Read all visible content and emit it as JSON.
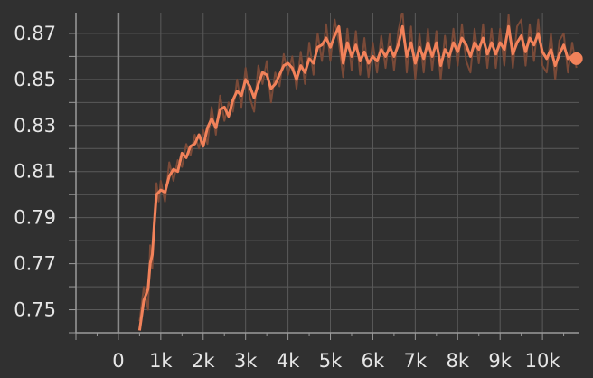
{
  "chart_data": {
    "type": "line",
    "title": "",
    "xlabel": "",
    "ylabel": "",
    "xlim": [
      -1000,
      10850
    ],
    "ylim": [
      0.74,
      0.879
    ],
    "x_ticks": [
      0,
      1000,
      2000,
      3000,
      4000,
      5000,
      6000,
      7000,
      8000,
      9000,
      10000
    ],
    "x_tick_labels": [
      "0",
      "1k",
      "2k",
      "3k",
      "4k",
      "5k",
      "6k",
      "7k",
      "8k",
      "9k",
      "10k"
    ],
    "y_ticks": [
      0.75,
      0.77,
      0.79,
      0.81,
      0.83,
      0.85,
      0.87
    ],
    "y_tick_labels": [
      "0.75",
      "0.77",
      "0.79",
      "0.81",
      "0.83",
      "0.85",
      "0.87"
    ],
    "grid": true,
    "colors": {
      "background": "#303030",
      "grid": "#5a5a5a",
      "axis": "#9a9a9a",
      "zero_line": "#8a8a8a",
      "smoothed": "#f2825a",
      "raw": "#7a4a38",
      "text": "#e6e6e6"
    },
    "series": [
      {
        "role": "smoothed",
        "x": [
          500,
          600,
          700,
          750,
          800,
          850,
          900,
          950,
          1000,
          1100,
          1200,
          1300,
          1400,
          1500,
          1600,
          1700,
          1800,
          1900,
          2000,
          2100,
          2200,
          2300,
          2400,
          2500,
          2600,
          2700,
          2800,
          2900,
          3000,
          3100,
          3200,
          3300,
          3400,
          3500,
          3600,
          3700,
          3800,
          3900,
          4000,
          4100,
          4200,
          4300,
          4400,
          4500,
          4600,
          4700,
          4800,
          4900,
          5000,
          5100,
          5200,
          5300,
          5400,
          5500,
          5600,
          5700,
          5800,
          5900,
          6000,
          6100,
          6200,
          6300,
          6400,
          6500,
          6600,
          6700,
          6800,
          6900,
          7000,
          7100,
          7200,
          7300,
          7400,
          7500,
          7600,
          7700,
          7800,
          7900,
          8000,
          8100,
          8200,
          8300,
          8400,
          8500,
          8600,
          8700,
          8800,
          8900,
          9000,
          9100,
          9200,
          9300,
          9400,
          9500,
          9600,
          9700,
          9800,
          9900,
          10000,
          10100,
          10200,
          10300,
          10400,
          10500,
          10600,
          10700,
          10800
        ],
        "y": [
          0.741,
          0.754,
          0.759,
          0.77,
          0.774,
          0.788,
          0.8,
          0.801,
          0.802,
          0.801,
          0.808,
          0.811,
          0.81,
          0.818,
          0.816,
          0.821,
          0.822,
          0.826,
          0.821,
          0.829,
          0.833,
          0.829,
          0.837,
          0.838,
          0.834,
          0.841,
          0.845,
          0.843,
          0.85,
          0.847,
          0.842,
          0.848,
          0.853,
          0.852,
          0.846,
          0.848,
          0.852,
          0.856,
          0.857,
          0.855,
          0.85,
          0.856,
          0.853,
          0.859,
          0.857,
          0.864,
          0.865,
          0.868,
          0.864,
          0.869,
          0.873,
          0.857,
          0.866,
          0.86,
          0.865,
          0.858,
          0.862,
          0.857,
          0.86,
          0.858,
          0.863,
          0.86,
          0.864,
          0.86,
          0.865,
          0.873,
          0.86,
          0.866,
          0.857,
          0.864,
          0.859,
          0.866,
          0.86,
          0.866,
          0.856,
          0.863,
          0.86,
          0.866,
          0.862,
          0.868,
          0.865,
          0.86,
          0.866,
          0.863,
          0.868,
          0.861,
          0.866,
          0.861,
          0.866,
          0.863,
          0.873,
          0.861,
          0.866,
          0.869,
          0.862,
          0.868,
          0.865,
          0.87,
          0.862,
          0.859,
          0.863,
          0.856,
          0.861,
          0.865,
          0.859,
          0.86,
          0.859
        ]
      },
      {
        "role": "raw",
        "x": [
          500,
          600,
          700,
          750,
          800,
          850,
          900,
          950,
          1000,
          1100,
          1200,
          1300,
          1400,
          1500,
          1600,
          1700,
          1800,
          1900,
          2000,
          2100,
          2200,
          2300,
          2400,
          2500,
          2600,
          2700,
          2800,
          2900,
          3000,
          3100,
          3200,
          3300,
          3400,
          3500,
          3600,
          3700,
          3800,
          3900,
          4000,
          4100,
          4200,
          4300,
          4400,
          4500,
          4600,
          4700,
          4800,
          4900,
          5000,
          5100,
          5200,
          5300,
          5400,
          5500,
          5600,
          5700,
          5800,
          5900,
          6000,
          6100,
          6200,
          6300,
          6400,
          6500,
          6600,
          6700,
          6800,
          6900,
          7000,
          7100,
          7200,
          7300,
          7400,
          7500,
          7600,
          7700,
          7800,
          7900,
          8000,
          8100,
          8200,
          8300,
          8400,
          8500,
          8600,
          8700,
          8800,
          8900,
          9000,
          9100,
          9200,
          9300,
          9400,
          9500,
          9600,
          9700,
          9800,
          9900,
          10000,
          10100,
          10200,
          10300,
          10400,
          10500,
          10600,
          10700,
          10800
        ],
        "y": [
          0.745,
          0.76,
          0.75,
          0.778,
          0.768,
          0.792,
          0.805,
          0.797,
          0.806,
          0.797,
          0.814,
          0.806,
          0.815,
          0.812,
          0.822,
          0.817,
          0.826,
          0.82,
          0.828,
          0.822,
          0.838,
          0.826,
          0.843,
          0.832,
          0.84,
          0.836,
          0.85,
          0.838,
          0.855,
          0.842,
          0.836,
          0.856,
          0.848,
          0.858,
          0.84,
          0.853,
          0.847,
          0.861,
          0.852,
          0.86,
          0.846,
          0.862,
          0.848,
          0.866,
          0.852,
          0.87,
          0.858,
          0.874,
          0.858,
          0.876,
          0.866,
          0.851,
          0.872,
          0.854,
          0.871,
          0.852,
          0.868,
          0.851,
          0.866,
          0.853,
          0.869,
          0.855,
          0.87,
          0.854,
          0.871,
          0.88,
          0.853,
          0.873,
          0.85,
          0.87,
          0.853,
          0.872,
          0.854,
          0.871,
          0.85,
          0.869,
          0.855,
          0.872,
          0.856,
          0.874,
          0.858,
          0.853,
          0.872,
          0.857,
          0.874,
          0.855,
          0.872,
          0.855,
          0.872,
          0.856,
          0.878,
          0.855,
          0.873,
          0.876,
          0.856,
          0.874,
          0.858,
          0.876,
          0.856,
          0.853,
          0.87,
          0.85,
          0.867,
          0.87,
          0.853,
          0.866,
          0.855
        ]
      }
    ]
  }
}
